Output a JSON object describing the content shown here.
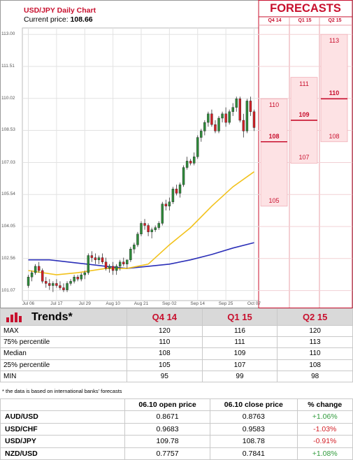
{
  "header": {
    "title": "USD/JPY Daily Chart",
    "current_price_label": "Current price:",
    "current_price": "108.66"
  },
  "forecasts": {
    "title": "FORECASTS",
    "columns": [
      "Q4 14",
      "Q1 15",
      "Q2 15"
    ]
  },
  "chart_data": {
    "type": "candlestick",
    "title": "USD/JPY Daily Chart",
    "y_ticks": [
      "113.00",
      "111.51",
      "110.02",
      "108.53",
      "107.03",
      "105.54",
      "104.05",
      "102.56",
      "101.07"
    ],
    "ylim": [
      100.6,
      113.3
    ],
    "x_ticks": [
      "Jul 06",
      "Jul 17",
      "Jul 29",
      "Aug 10",
      "Aug 21",
      "Sep 02",
      "Sep 14",
      "Sep 25",
      "Oct 07"
    ],
    "candles": [
      [
        101.3,
        101.8,
        101.2,
        101.7
      ],
      [
        101.7,
        102.0,
        101.5,
        101.9
      ],
      [
        101.9,
        102.3,
        101.8,
        102.2
      ],
      [
        102.2,
        102.4,
        101.9,
        102.0
      ],
      [
        102.0,
        102.1,
        101.4,
        101.5
      ],
      [
        101.5,
        101.7,
        101.2,
        101.4
      ],
      [
        101.4,
        101.6,
        101.1,
        101.3
      ],
      [
        101.3,
        101.5,
        101.0,
        101.4
      ],
      [
        101.4,
        101.6,
        101.2,
        101.3
      ],
      [
        101.3,
        101.5,
        101.1,
        101.2
      ],
      [
        101.2,
        101.4,
        101.0,
        101.1
      ],
      [
        101.1,
        101.5,
        101.0,
        101.4
      ],
      [
        101.4,
        101.6,
        101.3,
        101.5
      ],
      [
        101.5,
        101.8,
        101.4,
        101.7
      ],
      [
        101.7,
        101.8,
        101.5,
        101.6
      ],
      [
        101.6,
        101.9,
        101.5,
        101.8
      ],
      [
        101.8,
        102.0,
        101.6,
        101.9
      ],
      [
        101.9,
        102.8,
        101.8,
        102.7
      ],
      [
        102.7,
        102.9,
        102.4,
        102.6
      ],
      [
        102.6,
        102.8,
        102.3,
        102.5
      ],
      [
        102.5,
        102.7,
        102.3,
        102.6
      ],
      [
        102.6,
        102.8,
        102.3,
        102.4
      ],
      [
        102.4,
        102.6,
        102.0,
        102.1
      ],
      [
        102.1,
        102.3,
        101.9,
        102.2
      ],
      [
        102.2,
        102.4,
        101.8,
        102.0
      ],
      [
        102.0,
        102.3,
        101.8,
        102.2
      ],
      [
        102.2,
        102.5,
        102.0,
        102.4
      ],
      [
        102.4,
        102.6,
        102.2,
        102.3
      ],
      [
        102.3,
        102.5,
        102.1,
        102.5
      ],
      [
        102.5,
        103.1,
        102.4,
        103.0
      ],
      [
        103.0,
        103.3,
        102.8,
        103.2
      ],
      [
        103.2,
        103.8,
        103.1,
        103.7
      ],
      [
        103.7,
        104.3,
        103.6,
        104.2
      ],
      [
        104.2,
        104.4,
        103.9,
        104.1
      ],
      [
        104.1,
        104.2,
        103.6,
        103.8
      ],
      [
        103.8,
        104.0,
        103.5,
        103.9
      ],
      [
        103.9,
        104.1,
        103.8,
        104.0
      ],
      [
        104.0,
        104.3,
        103.9,
        104.2
      ],
      [
        104.2,
        105.2,
        104.1,
        105.1
      ],
      [
        105.1,
        105.3,
        104.8,
        105.0
      ],
      [
        105.0,
        105.4,
        104.8,
        105.2
      ],
      [
        105.2,
        105.9,
        105.1,
        105.8
      ],
      [
        105.8,
        106.0,
        105.5,
        105.6
      ],
      [
        105.6,
        106.1,
        105.4,
        106.0
      ],
      [
        106.0,
        106.9,
        105.9,
        106.8
      ],
      [
        106.8,
        107.3,
        106.7,
        107.1
      ],
      [
        107.1,
        107.2,
        106.9,
        107.0
      ],
      [
        107.0,
        107.5,
        106.9,
        107.3
      ],
      [
        107.3,
        108.3,
        107.2,
        108.2
      ],
      [
        108.2,
        108.6,
        108.0,
        108.5
      ],
      [
        108.5,
        109.0,
        108.3,
        108.9
      ],
      [
        108.9,
        109.4,
        108.7,
        109.3
      ],
      [
        109.3,
        109.5,
        108.7,
        108.8
      ],
      [
        108.8,
        109.0,
        108.4,
        108.5
      ],
      [
        108.5,
        109.2,
        108.4,
        109.1
      ],
      [
        109.1,
        109.4,
        108.9,
        109.3
      ],
      [
        109.3,
        109.6,
        108.7,
        108.9
      ],
      [
        108.9,
        109.5,
        108.8,
        109.4
      ],
      [
        109.4,
        109.8,
        109.2,
        109.6
      ],
      [
        109.6,
        110.1,
        109.4,
        110.0
      ],
      [
        110.0,
        110.1,
        108.9,
        109.0
      ],
      [
        109.0,
        109.3,
        108.2,
        108.5
      ],
      [
        108.5,
        110.0,
        108.4,
        109.9
      ],
      [
        109.9,
        110.1,
        109.2,
        109.4
      ],
      [
        109.4,
        109.5,
        108.5,
        108.66
      ]
    ],
    "ma_fast": [
      [
        0,
        102.0
      ],
      [
        8,
        101.8
      ],
      [
        14,
        101.9
      ],
      [
        22,
        102.1
      ],
      [
        28,
        102.1
      ],
      [
        34,
        102.3
      ],
      [
        40,
        103.2
      ],
      [
        46,
        104.0
      ],
      [
        52,
        105.0
      ],
      [
        58,
        105.9
      ],
      [
        64,
        106.6
      ]
    ],
    "ma_slow": [
      [
        0,
        102.5
      ],
      [
        6,
        102.5
      ],
      [
        14,
        102.35
      ],
      [
        22,
        102.2
      ],
      [
        28,
        102.1
      ],
      [
        34,
        102.2
      ],
      [
        40,
        102.3
      ],
      [
        46,
        102.5
      ],
      [
        52,
        102.75
      ],
      [
        58,
        103.05
      ],
      [
        64,
        103.3
      ]
    ],
    "forecast_bands": [
      {
        "period": "Q4 14",
        "min": 95,
        "p25": 105,
        "median": 108,
        "p75": 110,
        "max": 120
      },
      {
        "period": "Q1 15",
        "min": 99,
        "p25": 107,
        "median": 109,
        "p75": 111,
        "max": 116
      },
      {
        "period": "Q2 15",
        "min": 98,
        "p25": 108,
        "median": 110,
        "p75": 113,
        "max": 120
      }
    ],
    "colors": {
      "up": "#2e8b3a",
      "down": "#d32027",
      "ma_fast": "#f2c21b",
      "ma_slow": "#2b2fb8",
      "forecast": "#c8102e"
    }
  },
  "trends": {
    "title": "Trends*",
    "columns": [
      "Q4 14",
      "Q1 15",
      "Q2 15"
    ],
    "rows": [
      {
        "label": "MAX",
        "values": [
          "120",
          "116",
          "120"
        ]
      },
      {
        "label": "75% percentile",
        "values": [
          "110",
          "111",
          "113"
        ]
      },
      {
        "label": "Median",
        "values": [
          "108",
          "109",
          "110"
        ]
      },
      {
        "label": "25% percentile",
        "values": [
          "105",
          "107",
          "108"
        ]
      },
      {
        "label": "MIN",
        "values": [
          "95",
          "99",
          "98"
        ]
      }
    ],
    "note": "* the data is based on international banks' forecasts"
  },
  "prices": {
    "columns": [
      "06.10 open price",
      "06.10 close price",
      "% change"
    ],
    "rows": [
      {
        "pair": "AUD/USD",
        "open": "0.8671",
        "close": "0.8763",
        "change": "+1.06%",
        "positive": true
      },
      {
        "pair": "USD/CHF",
        "open": "0.9683",
        "close": "0.9583",
        "change": "-1.03%",
        "positive": false
      },
      {
        "pair": "USD/JPY",
        "open": "109.78",
        "close": "108.78",
        "change": "-0.91%",
        "positive": false
      },
      {
        "pair": "NZD/USD",
        "open": "0.7757",
        "close": "0.7841",
        "change": "+1.08%",
        "positive": true
      }
    ]
  }
}
